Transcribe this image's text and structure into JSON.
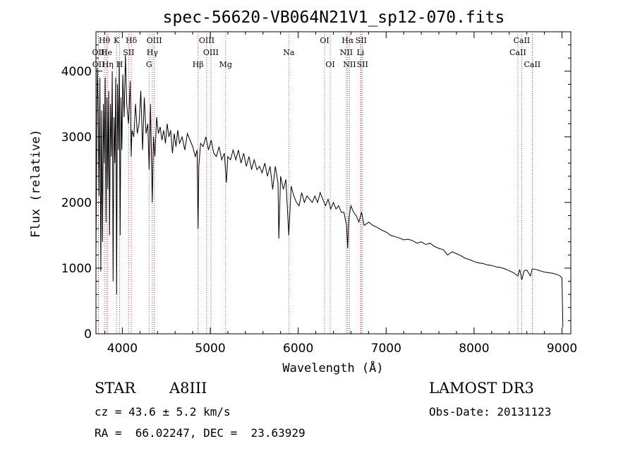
{
  "chart_data": {
    "type": "line",
    "title": "spec-56620-VB064N21V1_sp12-070.fits",
    "xlabel": "Wavelength (Å)",
    "ylabel": "Flux (relative)",
    "xlim": [
      3700,
      9100
    ],
    "ylim": [
      0,
      4600
    ],
    "xticks": [
      4000,
      5000,
      6000,
      7000,
      8000,
      9000
    ],
    "yticks": [
      0,
      1000,
      2000,
      3000,
      4000
    ],
    "grid": false,
    "series": [
      {
        "name": "spectrum",
        "x": [
          3700,
          3715,
          3725,
          3735,
          3745,
          3755,
          3765,
          3775,
          3785,
          3795,
          3805,
          3815,
          3825,
          3835,
          3845,
          3855,
          3865,
          3875,
          3885,
          3895,
          3905,
          3915,
          3925,
          3935,
          3945,
          3955,
          3965,
          3975,
          3985,
          3995,
          4005,
          4020,
          4035,
          4050,
          4070,
          4090,
          4100,
          4110,
          4130,
          4150,
          4170,
          4190,
          4210,
          4230,
          4250,
          4270,
          4290,
          4305,
          4320,
          4340,
          4355,
          4370,
          4390,
          4410,
          4430,
          4450,
          4470,
          4490,
          4510,
          4530,
          4550,
          4570,
          4590,
          4610,
          4630,
          4650,
          4680,
          4710,
          4740,
          4770,
          4800,
          4830,
          4850,
          4861,
          4870,
          4890,
          4920,
          4950,
          4980,
          5010,
          5040,
          5070,
          5100,
          5130,
          5160,
          5183,
          5200,
          5230,
          5260,
          5290,
          5320,
          5350,
          5380,
          5410,
          5440,
          5470,
          5500,
          5530,
          5560,
          5590,
          5620,
          5650,
          5680,
          5710,
          5740,
          5770,
          5780,
          5800,
          5830,
          5860,
          5893,
          5920,
          5950,
          5980,
          6010,
          6040,
          6070,
          6100,
          6130,
          6160,
          6190,
          6220,
          6250,
          6280,
          6310,
          6340,
          6370,
          6400,
          6430,
          6460,
          6490,
          6520,
          6550,
          6563,
          6575,
          6600,
          6630,
          6660,
          6690,
          6720,
          6750,
          6800,
          6850,
          6900,
          6950,
          7000,
          7050,
          7100,
          7150,
          7200,
          7250,
          7300,
          7350,
          7400,
          7450,
          7500,
          7550,
          7600,
          7650,
          7700,
          7750,
          7800,
          7850,
          7900,
          7950,
          8000,
          8050,
          8100,
          8150,
          8200,
          8250,
          8300,
          8350,
          8400,
          8450,
          8498,
          8520,
          8542,
          8570,
          8600,
          8640,
          8662,
          8700,
          8750,
          8800,
          8850,
          8900,
          8950,
          8980,
          9000,
          9010
        ],
        "y": [
          1200,
          4050,
          3500,
          2100,
          3900,
          950,
          3400,
          1400,
          3500,
          2600,
          3900,
          1700,
          3600,
          2200,
          3700,
          1500,
          3500,
          2700,
          4000,
          800,
          3300,
          2600,
          3900,
          600,
          3800,
          2800,
          4150,
          1500,
          3600,
          2800,
          3950,
          3300,
          4250,
          3500,
          3200,
          3850,
          2700,
          3100,
          3000,
          3500,
          3050,
          3200,
          3700,
          2800,
          3600,
          3050,
          3200,
          2500,
          3500,
          2000,
          3000,
          2700,
          3300,
          3050,
          3150,
          2950,
          3100,
          2900,
          3200,
          3000,
          3100,
          2750,
          3050,
          2850,
          3100,
          2900,
          3000,
          2800,
          3050,
          2950,
          2850,
          2700,
          2800,
          1600,
          2550,
          2900,
          2850,
          3000,
          2800,
          2950,
          2750,
          2700,
          2850,
          2650,
          2750,
          2300,
          2700,
          2650,
          2800,
          2650,
          2800,
          2600,
          2750,
          2550,
          2700,
          2500,
          2650,
          2500,
          2550,
          2450,
          2600,
          2400,
          2550,
          2200,
          2550,
          2300,
          1450,
          2400,
          2200,
          2350,
          1500,
          2250,
          2100,
          2000,
          1950,
          2150,
          2000,
          2100,
          2050,
          2000,
          2100,
          2000,
          2150,
          2050,
          1950,
          2050,
          1900,
          2000,
          1900,
          1950,
          1850,
          1850,
          1650,
          1300,
          1750,
          1950,
          1850,
          1800,
          1700,
          1850,
          1650,
          1700,
          1650,
          1620,
          1580,
          1550,
          1500,
          1480,
          1460,
          1430,
          1440,
          1420,
          1380,
          1400,
          1360,
          1380,
          1330,
          1300,
          1280,
          1200,
          1250,
          1220,
          1190,
          1150,
          1130,
          1100,
          1080,
          1070,
          1050,
          1040,
          1020,
          1010,
          990,
          960,
          930,
          880,
          980,
          820,
          960,
          970,
          880,
          990,
          980,
          960,
          940,
          930,
          920,
          900,
          880,
          850,
          100
        ]
      }
    ],
    "lines": [
      {
        "label": "Hδ",
        "x": 4102,
        "row": 0
      },
      {
        "label": "Hθ",
        "x": 3797,
        "row": 0
      },
      {
        "label": "K",
        "x": 3934,
        "row": 0
      },
      {
        "label": "OII",
        "x": 3727,
        "row": 1
      },
      {
        "label": "He",
        "x": 3820,
        "row": 1
      },
      {
        "label": "SII",
        "x": 4072,
        "row": 1
      },
      {
        "label": "OII",
        "x": 3729,
        "row": 2
      },
      {
        "label": "Hη",
        "x": 3835,
        "row": 2
      },
      {
        "label": "H",
        "x": 3969,
        "row": 2
      },
      {
        "label": "OIII",
        "x": 4363,
        "row": 0
      },
      {
        "label": "Hγ",
        "x": 4341,
        "row": 1
      },
      {
        "label": "G",
        "x": 4304,
        "row": 2
      },
      {
        "label": "OIII",
        "x": 4959,
        "row": 0
      },
      {
        "label": "OIII",
        "x": 5007,
        "row": 1
      },
      {
        "label": "Hβ",
        "x": 4861,
        "row": 2
      },
      {
        "label": "Mg",
        "x": 5175,
        "row": 2
      },
      {
        "label": "Na",
        "x": 5893,
        "row": 1
      },
      {
        "label": "OI",
        "x": 6300,
        "row": 0
      },
      {
        "label": "OI",
        "x": 6364,
        "row": 2
      },
      {
        "label": "Hα",
        "x": 6563,
        "row": 0
      },
      {
        "label": "NII",
        "x": 6548,
        "row": 1
      },
      {
        "label": "NII",
        "x": 6584,
        "row": 2
      },
      {
        "label": "SII",
        "x": 6716,
        "row": 0
      },
      {
        "label": "Li",
        "x": 6708,
        "row": 1
      },
      {
        "label": "SII",
        "x": 6731,
        "row": 2
      },
      {
        "label": "CaII",
        "x": 8542,
        "row": 0
      },
      {
        "label": "CaII",
        "x": 8498,
        "row": 1
      },
      {
        "label": "CaII",
        "x": 8662,
        "row": 2
      }
    ]
  },
  "info": {
    "object_type": "STAR",
    "subclass": "A8III",
    "survey": "LAMOST DR3",
    "cz": "cz = 43.6 ± 5.2 km/s",
    "obs_date": "Obs-Date: 20131123",
    "radec": "RA =  66.02247, DEC =  23.63929"
  }
}
